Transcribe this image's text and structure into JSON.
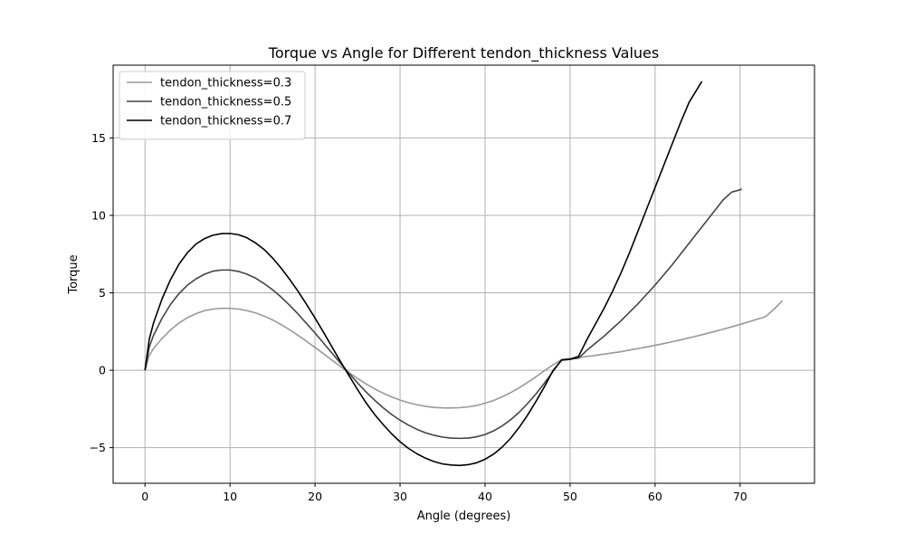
{
  "chart_data": {
    "type": "line",
    "title": "Torque vs Angle for Different tendon_thickness Values",
    "xlabel": "Angle (degrees)",
    "ylabel": "Torque",
    "xlim": [
      -3.75,
      78.75
    ],
    "ylim": [
      -7.3,
      19.7
    ],
    "xticks": [
      0,
      10,
      20,
      30,
      40,
      50,
      60,
      70
    ],
    "yticks": [
      -5,
      0,
      5,
      10,
      15
    ],
    "grid": true,
    "legend_position": "top-left",
    "series": [
      {
        "name": "tendon_thickness=0.3",
        "color": "#999999",
        "x": [
          0,
          0.5,
          1,
          2,
          3,
          4,
          5,
          6,
          7,
          8,
          9,
          10,
          11,
          12,
          13,
          14,
          15,
          16,
          17,
          18,
          19,
          20,
          21,
          22,
          23,
          24,
          25,
          26,
          27,
          28,
          29,
          30,
          31,
          32,
          33,
          34,
          35,
          36,
          37,
          38,
          39,
          40,
          41,
          42,
          43,
          44,
          45,
          46,
          47,
          48,
          49,
          50,
          51,
          52,
          53,
          54,
          55,
          56,
          57,
          58,
          59,
          60,
          61,
          62,
          63,
          64,
          65,
          66,
          67,
          68,
          69,
          70,
          71,
          72,
          73,
          74,
          75
        ],
        "y": [
          0,
          0.95,
          1.4,
          2.05,
          2.6,
          3.05,
          3.4,
          3.65,
          3.85,
          3.95,
          4.0,
          4.0,
          3.95,
          3.85,
          3.7,
          3.5,
          3.25,
          2.95,
          2.62,
          2.25,
          1.87,
          1.47,
          1.06,
          0.65,
          0.24,
          -0.16,
          -0.53,
          -0.88,
          -1.2,
          -1.48,
          -1.72,
          -1.93,
          -2.1,
          -2.23,
          -2.33,
          -2.4,
          -2.43,
          -2.44,
          -2.42,
          -2.37,
          -2.28,
          -2.13,
          -1.95,
          -1.72,
          -1.45,
          -1.14,
          -0.79,
          -0.42,
          -0.02,
          0.35,
          0.68,
          0.76,
          0.82,
          0.89,
          0.96,
          1.04,
          1.12,
          1.2,
          1.3,
          1.4,
          1.5,
          1.61,
          1.72,
          1.84,
          1.96,
          2.09,
          2.22,
          2.36,
          2.5,
          2.65,
          2.8,
          2.96,
          3.12,
          3.29,
          3.46,
          3.95,
          4.5
        ]
      },
      {
        "name": "tendon_thickness=0.5",
        "color": "#444444",
        "x": [
          0,
          0.5,
          1,
          2,
          3,
          4,
          5,
          6,
          7,
          8,
          9,
          10,
          11,
          12,
          13,
          14,
          15,
          16,
          17,
          18,
          19,
          20,
          21,
          22,
          23,
          24,
          25,
          26,
          27,
          28,
          29,
          30,
          31,
          32,
          33,
          34,
          35,
          36,
          37,
          38,
          39,
          40,
          41,
          42,
          43,
          44,
          45,
          46,
          47,
          48,
          49,
          50,
          51,
          52,
          53,
          54,
          55,
          56,
          57,
          58,
          59,
          60,
          61,
          62,
          63,
          64,
          65,
          66,
          67,
          68,
          69,
          70,
          70.2
        ],
        "y": [
          0,
          1.5,
          2.25,
          3.35,
          4.25,
          4.95,
          5.5,
          5.9,
          6.2,
          6.4,
          6.47,
          6.47,
          6.38,
          6.2,
          5.95,
          5.6,
          5.2,
          4.73,
          4.2,
          3.63,
          3.02,
          2.4,
          1.75,
          1.1,
          0.45,
          -0.2,
          -0.82,
          -1.4,
          -1.93,
          -2.42,
          -2.85,
          -3.23,
          -3.55,
          -3.82,
          -4.04,
          -4.2,
          -4.32,
          -4.38,
          -4.4,
          -4.38,
          -4.3,
          -4.15,
          -3.92,
          -3.6,
          -3.2,
          -2.72,
          -2.15,
          -1.52,
          -0.82,
          -0.07,
          0.68,
          0.72,
          0.78,
          1.3,
          1.75,
          2.2,
          2.7,
          3.2,
          3.75,
          4.3,
          4.9,
          5.5,
          6.15,
          6.8,
          7.5,
          8.2,
          8.9,
          9.6,
          10.3,
          11.0,
          11.5,
          11.65,
          11.7
        ]
      },
      {
        "name": "tendon_thickness=0.7",
        "color": "#000000",
        "x": [
          0,
          0.5,
          1,
          2,
          3,
          4,
          5,
          6,
          7,
          8,
          9,
          10,
          11,
          12,
          13,
          14,
          15,
          16,
          17,
          18,
          19,
          20,
          21,
          22,
          23,
          24,
          25,
          26,
          27,
          28,
          29,
          30,
          31,
          32,
          33,
          34,
          35,
          36,
          37,
          38,
          39,
          40,
          41,
          42,
          43,
          44,
          45,
          46,
          47,
          48,
          49,
          50,
          51,
          52,
          53,
          54,
          55,
          56,
          57,
          58,
          59,
          60,
          61,
          62,
          63,
          64,
          65,
          65.5
        ],
        "y": [
          0,
          2.0,
          3.05,
          4.6,
          5.85,
          6.85,
          7.6,
          8.15,
          8.5,
          8.72,
          8.82,
          8.83,
          8.75,
          8.55,
          8.22,
          7.8,
          7.25,
          6.6,
          5.88,
          5.1,
          4.25,
          3.37,
          2.45,
          1.5,
          0.55,
          -0.35,
          -1.25,
          -2.1,
          -2.85,
          -3.5,
          -4.1,
          -4.62,
          -5.05,
          -5.4,
          -5.68,
          -5.9,
          -6.05,
          -6.12,
          -6.15,
          -6.1,
          -5.98,
          -5.75,
          -5.42,
          -4.97,
          -4.4,
          -3.7,
          -2.9,
          -2.0,
          -1.05,
          -0.02,
          0.65,
          0.7,
          0.9,
          2.0,
          3.0,
          4.0,
          5.1,
          6.3,
          7.6,
          9.0,
          10.4,
          11.8,
          13.2,
          14.6,
          16.0,
          17.3,
          18.2,
          18.65
        ]
      }
    ]
  }
}
